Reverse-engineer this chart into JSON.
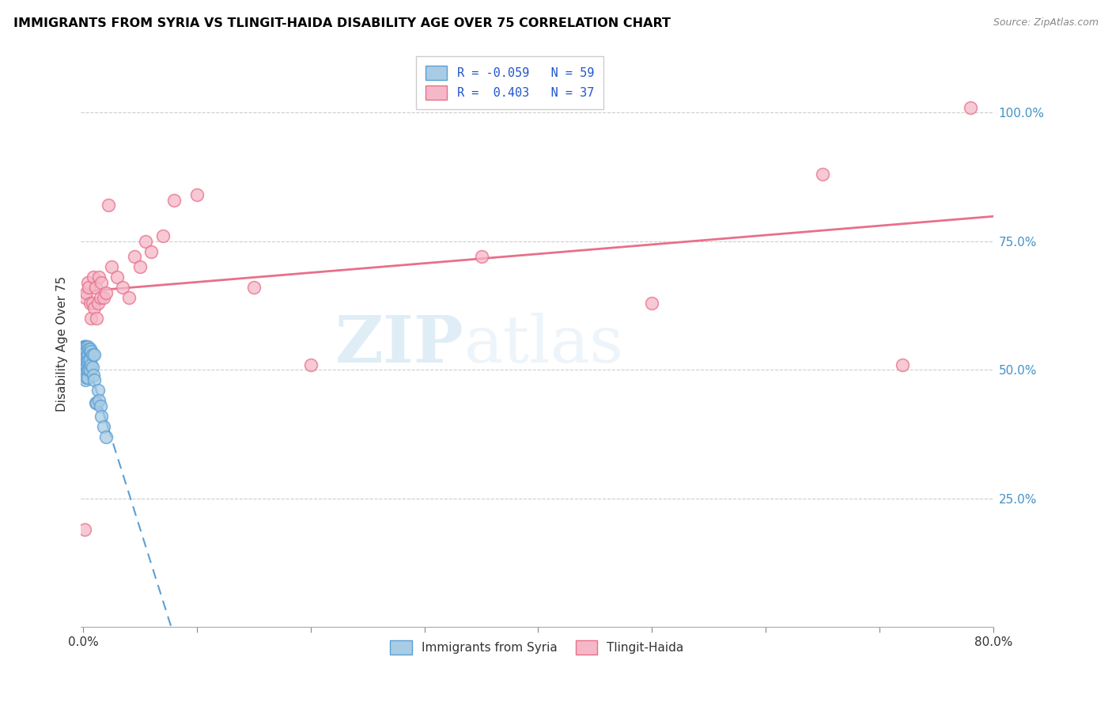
{
  "title": "IMMIGRANTS FROM SYRIA VS TLINGIT-HAIDA DISABILITY AGE OVER 75 CORRELATION CHART",
  "source": "Source: ZipAtlas.com",
  "ylabel": "Disability Age Over 75",
  "ytick_labels": [
    "25.0%",
    "50.0%",
    "75.0%",
    "100.0%"
  ],
  "ytick_values": [
    0.25,
    0.5,
    0.75,
    1.0
  ],
  "xlim": [
    -0.002,
    0.8
  ],
  "ylim": [
    0.0,
    1.1
  ],
  "watermark_zip": "ZIP",
  "watermark_atlas": "atlas",
  "blue_color": "#a8cce4",
  "blue_edge": "#5b9fd4",
  "pink_color": "#f5b8c8",
  "pink_edge": "#e8708a",
  "blue_line_color": "#5b9fd4",
  "pink_line_color": "#e8708a",
  "legend_blue_label_r": "R = -0.059",
  "legend_blue_label_n": "N = 59",
  "legend_pink_label_r": "R =  0.403",
  "legend_pink_label_n": "N = 37",
  "syria_x": [
    0.0005,
    0.001,
    0.001,
    0.001,
    0.001,
    0.001,
    0.001,
    0.001,
    0.001,
    0.001,
    0.0015,
    0.0015,
    0.0015,
    0.0015,
    0.0015,
    0.002,
    0.002,
    0.002,
    0.002,
    0.002,
    0.002,
    0.002,
    0.002,
    0.0025,
    0.0025,
    0.0025,
    0.003,
    0.003,
    0.003,
    0.003,
    0.003,
    0.003,
    0.003,
    0.004,
    0.004,
    0.004,
    0.004,
    0.004,
    0.005,
    0.005,
    0.005,
    0.006,
    0.006,
    0.006,
    0.007,
    0.007,
    0.008,
    0.008,
    0.009,
    0.01,
    0.01,
    0.011,
    0.012,
    0.013,
    0.014,
    0.015,
    0.016,
    0.018,
    0.02
  ],
  "syria_y": [
    0.545,
    0.545,
    0.545,
    0.54,
    0.535,
    0.53,
    0.525,
    0.52,
    0.515,
    0.51,
    0.545,
    0.535,
    0.525,
    0.515,
    0.505,
    0.545,
    0.54,
    0.53,
    0.52,
    0.51,
    0.5,
    0.49,
    0.48,
    0.545,
    0.525,
    0.505,
    0.545,
    0.535,
    0.525,
    0.515,
    0.505,
    0.495,
    0.485,
    0.545,
    0.53,
    0.515,
    0.5,
    0.485,
    0.54,
    0.52,
    0.5,
    0.54,
    0.52,
    0.5,
    0.535,
    0.51,
    0.53,
    0.505,
    0.49,
    0.53,
    0.48,
    0.435,
    0.435,
    0.46,
    0.44,
    0.43,
    0.41,
    0.39,
    0.37
  ],
  "tlingit_x": [
    0.001,
    0.002,
    0.003,
    0.004,
    0.005,
    0.006,
    0.007,
    0.008,
    0.009,
    0.01,
    0.011,
    0.012,
    0.013,
    0.014,
    0.015,
    0.016,
    0.018,
    0.02,
    0.022,
    0.025,
    0.03,
    0.035,
    0.04,
    0.045,
    0.05,
    0.055,
    0.06,
    0.07,
    0.08,
    0.1,
    0.15,
    0.2,
    0.35,
    0.5,
    0.65,
    0.72,
    0.78
  ],
  "tlingit_y": [
    0.19,
    0.64,
    0.65,
    0.67,
    0.66,
    0.63,
    0.6,
    0.63,
    0.68,
    0.62,
    0.66,
    0.6,
    0.63,
    0.68,
    0.64,
    0.67,
    0.64,
    0.65,
    0.82,
    0.7,
    0.68,
    0.66,
    0.64,
    0.72,
    0.7,
    0.75,
    0.73,
    0.76,
    0.83,
    0.84,
    0.66,
    0.51,
    0.72,
    0.63,
    0.88,
    0.51,
    1.01
  ]
}
